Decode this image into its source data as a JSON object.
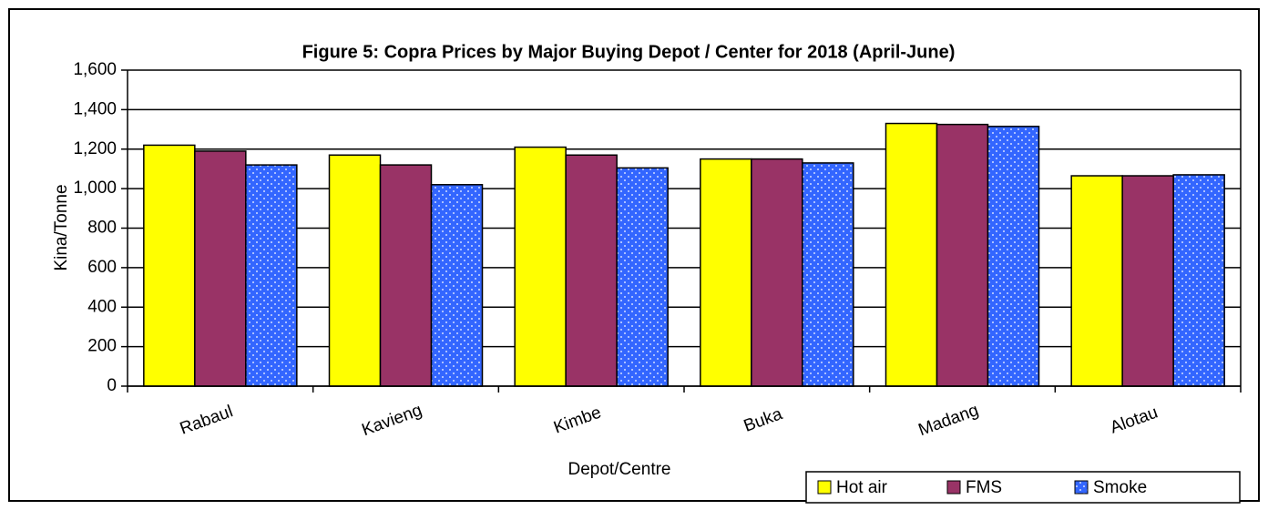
{
  "chart_data": {
    "type": "bar",
    "title": "Figure 5: Copra Prices by Major Buying Depot / Center for 2018 (April-June)",
    "x_label": "Depot/Centre",
    "y_label": "Kina/Tonne",
    "categories": [
      "Rabaul",
      "Kavieng",
      "Kimbe",
      "Buka",
      "Madang",
      "Alotau"
    ],
    "series": [
      {
        "name": "Hot air",
        "color": "#ffff00",
        "values": [
          1220,
          1170,
          1210,
          1150,
          1330,
          1065
        ]
      },
      {
        "name": "FMS",
        "color": "#993366",
        "values": [
          1190,
          1120,
          1170,
          1150,
          1325,
          1065
        ]
      },
      {
        "name": "Smoke",
        "color": "#3366ff",
        "values": [
          1120,
          1020,
          1105,
          1130,
          1315,
          1070
        ]
      }
    ],
    "ylim": [
      0,
      1600
    ],
    "yticks": [
      0,
      200,
      400,
      600,
      800,
      {
        "value": 1000,
        "label": "1,000"
      },
      {
        "value": 1200,
        "label": "1,200"
      },
      {
        "value": 1400,
        "label": "1,400"
      },
      {
        "value": 1600,
        "label": "1,600"
      }
    ],
    "grid": true,
    "legend": "bottom-right"
  }
}
